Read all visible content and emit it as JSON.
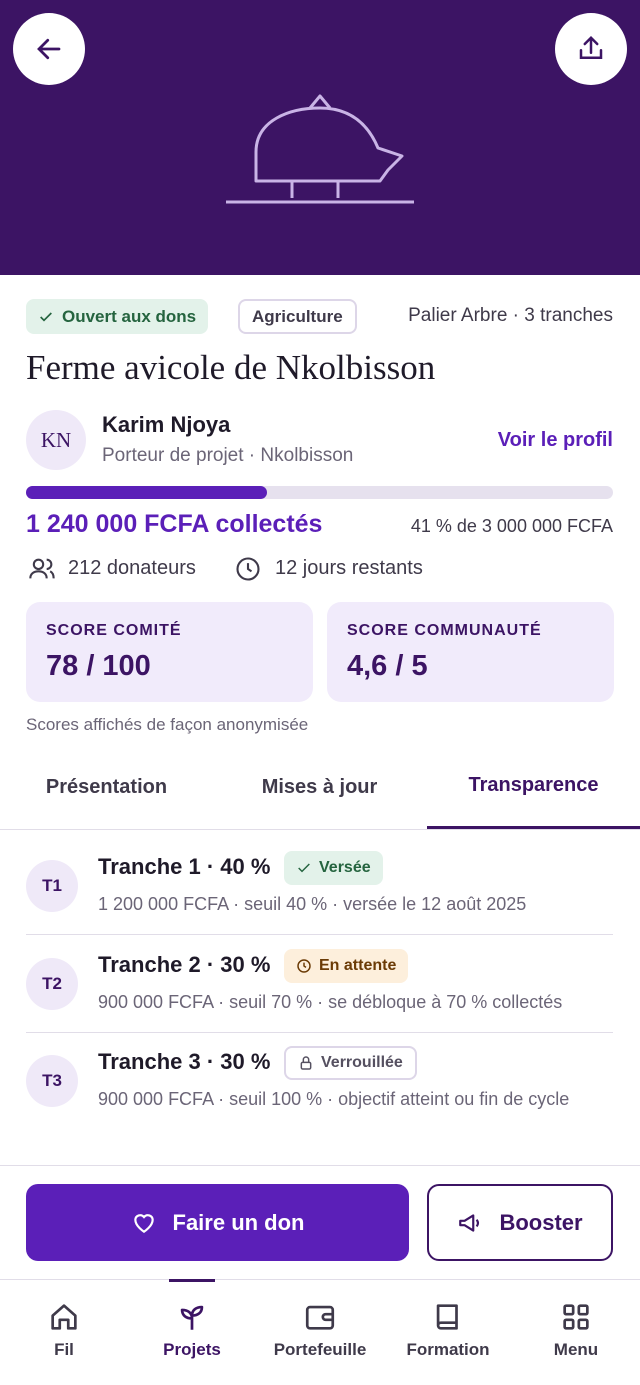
{
  "tags": [
    "Ouvert aux dons",
    "Agriculture"
  ],
  "tier": "Palier Arbre · 3 tranches",
  "project": {
    "title": "Ferme avicole de Nkolbisson",
    "owner": {
      "initials": "KN",
      "name": "Karim Njoya",
      "subtitle": "Porteur de projet · Nkolbisson",
      "profile_link": "Voir le profil"
    }
  },
  "funding": {
    "progress": 41,
    "collected": "1 240 000 FCFA collectés",
    "ratio": "41 % de 3 000 000 FCFA",
    "donors": "212 donateurs",
    "remaining": "12 jours restants"
  },
  "scores": [
    {
      "label": "SCORE COMITÉ",
      "value": "78 / 100"
    },
    {
      "label": "SCORE COMMUNAUTÉ",
      "value": "4,6 / 5"
    }
  ],
  "scores_note": "Scores affichés de façon anonymisée",
  "tabs": {
    "items": [
      "Présentation",
      "Mises à jour",
      "Transparence"
    ],
    "selected": 2
  },
  "tranches": [
    {
      "code": "T1",
      "title": "Tranche 1 · 40 %",
      "status": "Versée",
      "detail": "1 200 000 FCFA · seuil 40 % · versée le 12 août 2025"
    },
    {
      "code": "T2",
      "title": "Tranche 2 · 30 %",
      "status": "En attente",
      "detail": "900 000 FCFA · seuil 70 % · se débloque à 70 % collectés"
    },
    {
      "code": "T3",
      "title": "Tranche 3 · 30 %",
      "status": "Verrouillée",
      "detail": "900 000 FCFA · seuil 100 % · objectif atteint ou fin de cycle"
    }
  ],
  "actions": [
    "Faire un don",
    "Booster"
  ],
  "nav": {
    "items": [
      "Fil",
      "Projets",
      "Portefeuille",
      "Formation",
      "Menu"
    ],
    "selected": 1
  }
}
